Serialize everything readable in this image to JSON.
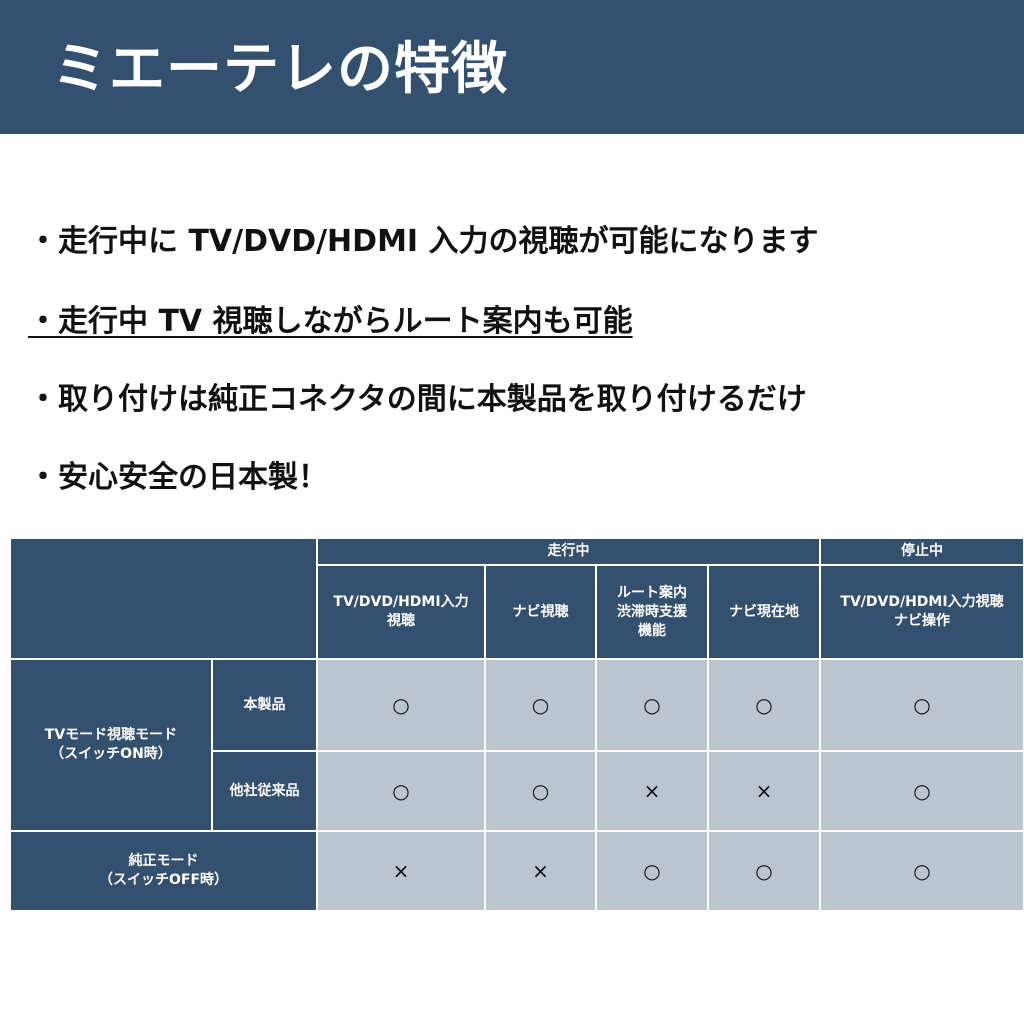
{
  "title": "ミエーテレの特徴",
  "bullets": [
    "・走行中に TV/DVD/HDMI 入力の視聴が可能になります",
    "・走行中 TV 視聴しながらルート案内も可能",
    "・取り付けは純正コネクタの間に本製品を取り付けるだけ",
    "・安心安全の日本製！"
  ],
  "table": {
    "group_moving": "走行中",
    "group_stopped": "停止中",
    "columns": [
      "TV/DVD/HDMI入力\n視聴",
      "ナビ視聴",
      "ルート案内\n渋滞時支援\n機能",
      "ナビ現在地",
      "TV/DVD/HDMI入力視聴\nナビ操作"
    ],
    "mode_tv": "TVモード視聴モード\n（スイッチON時）",
    "mode_genuine": "純正モード\n（スイッチOFF時）",
    "rows": [
      {
        "label": "本製品",
        "values": [
          "○",
          "○",
          "○",
          "○",
          "○"
        ]
      },
      {
        "label": "他社従来品",
        "values": [
          "○",
          "○",
          "×",
          "×",
          "○"
        ]
      },
      {
        "label": "",
        "values": [
          "×",
          "×",
          "○",
          "○",
          "○"
        ]
      }
    ]
  }
}
